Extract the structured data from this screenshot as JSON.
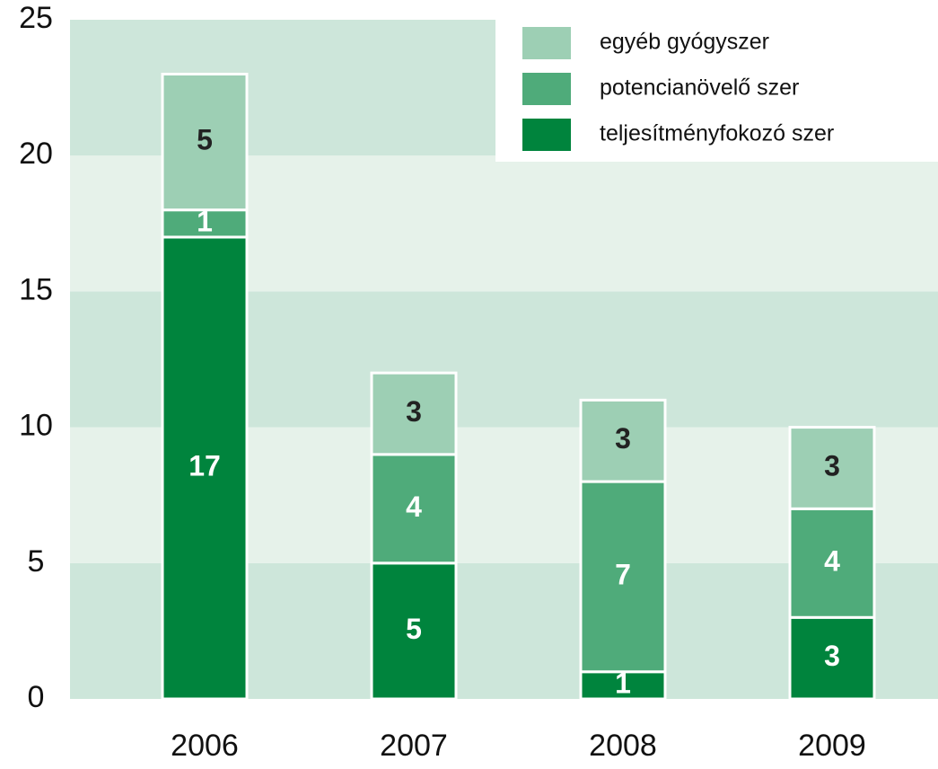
{
  "chart_data": {
    "type": "stacked_bar",
    "categories": [
      "2006",
      "2007",
      "2008",
      "2009"
    ],
    "series": [
      {
        "name": "teljesítményfokozó szer",
        "color": "#00843d",
        "values": [
          17,
          5,
          1,
          3
        ]
      },
      {
        "name": "potencianövelő szer",
        "color": "#4fab7a",
        "values": [
          1,
          4,
          7,
          4
        ]
      },
      {
        "name": "egyéb gyógyszer",
        "color": "#9dcfb4",
        "values": [
          5,
          3,
          3,
          3
        ]
      }
    ],
    "ylim": [
      0,
      25
    ],
    "yticks": [
      0,
      5,
      10,
      15,
      20,
      25
    ],
    "legend": "upper right"
  }
}
